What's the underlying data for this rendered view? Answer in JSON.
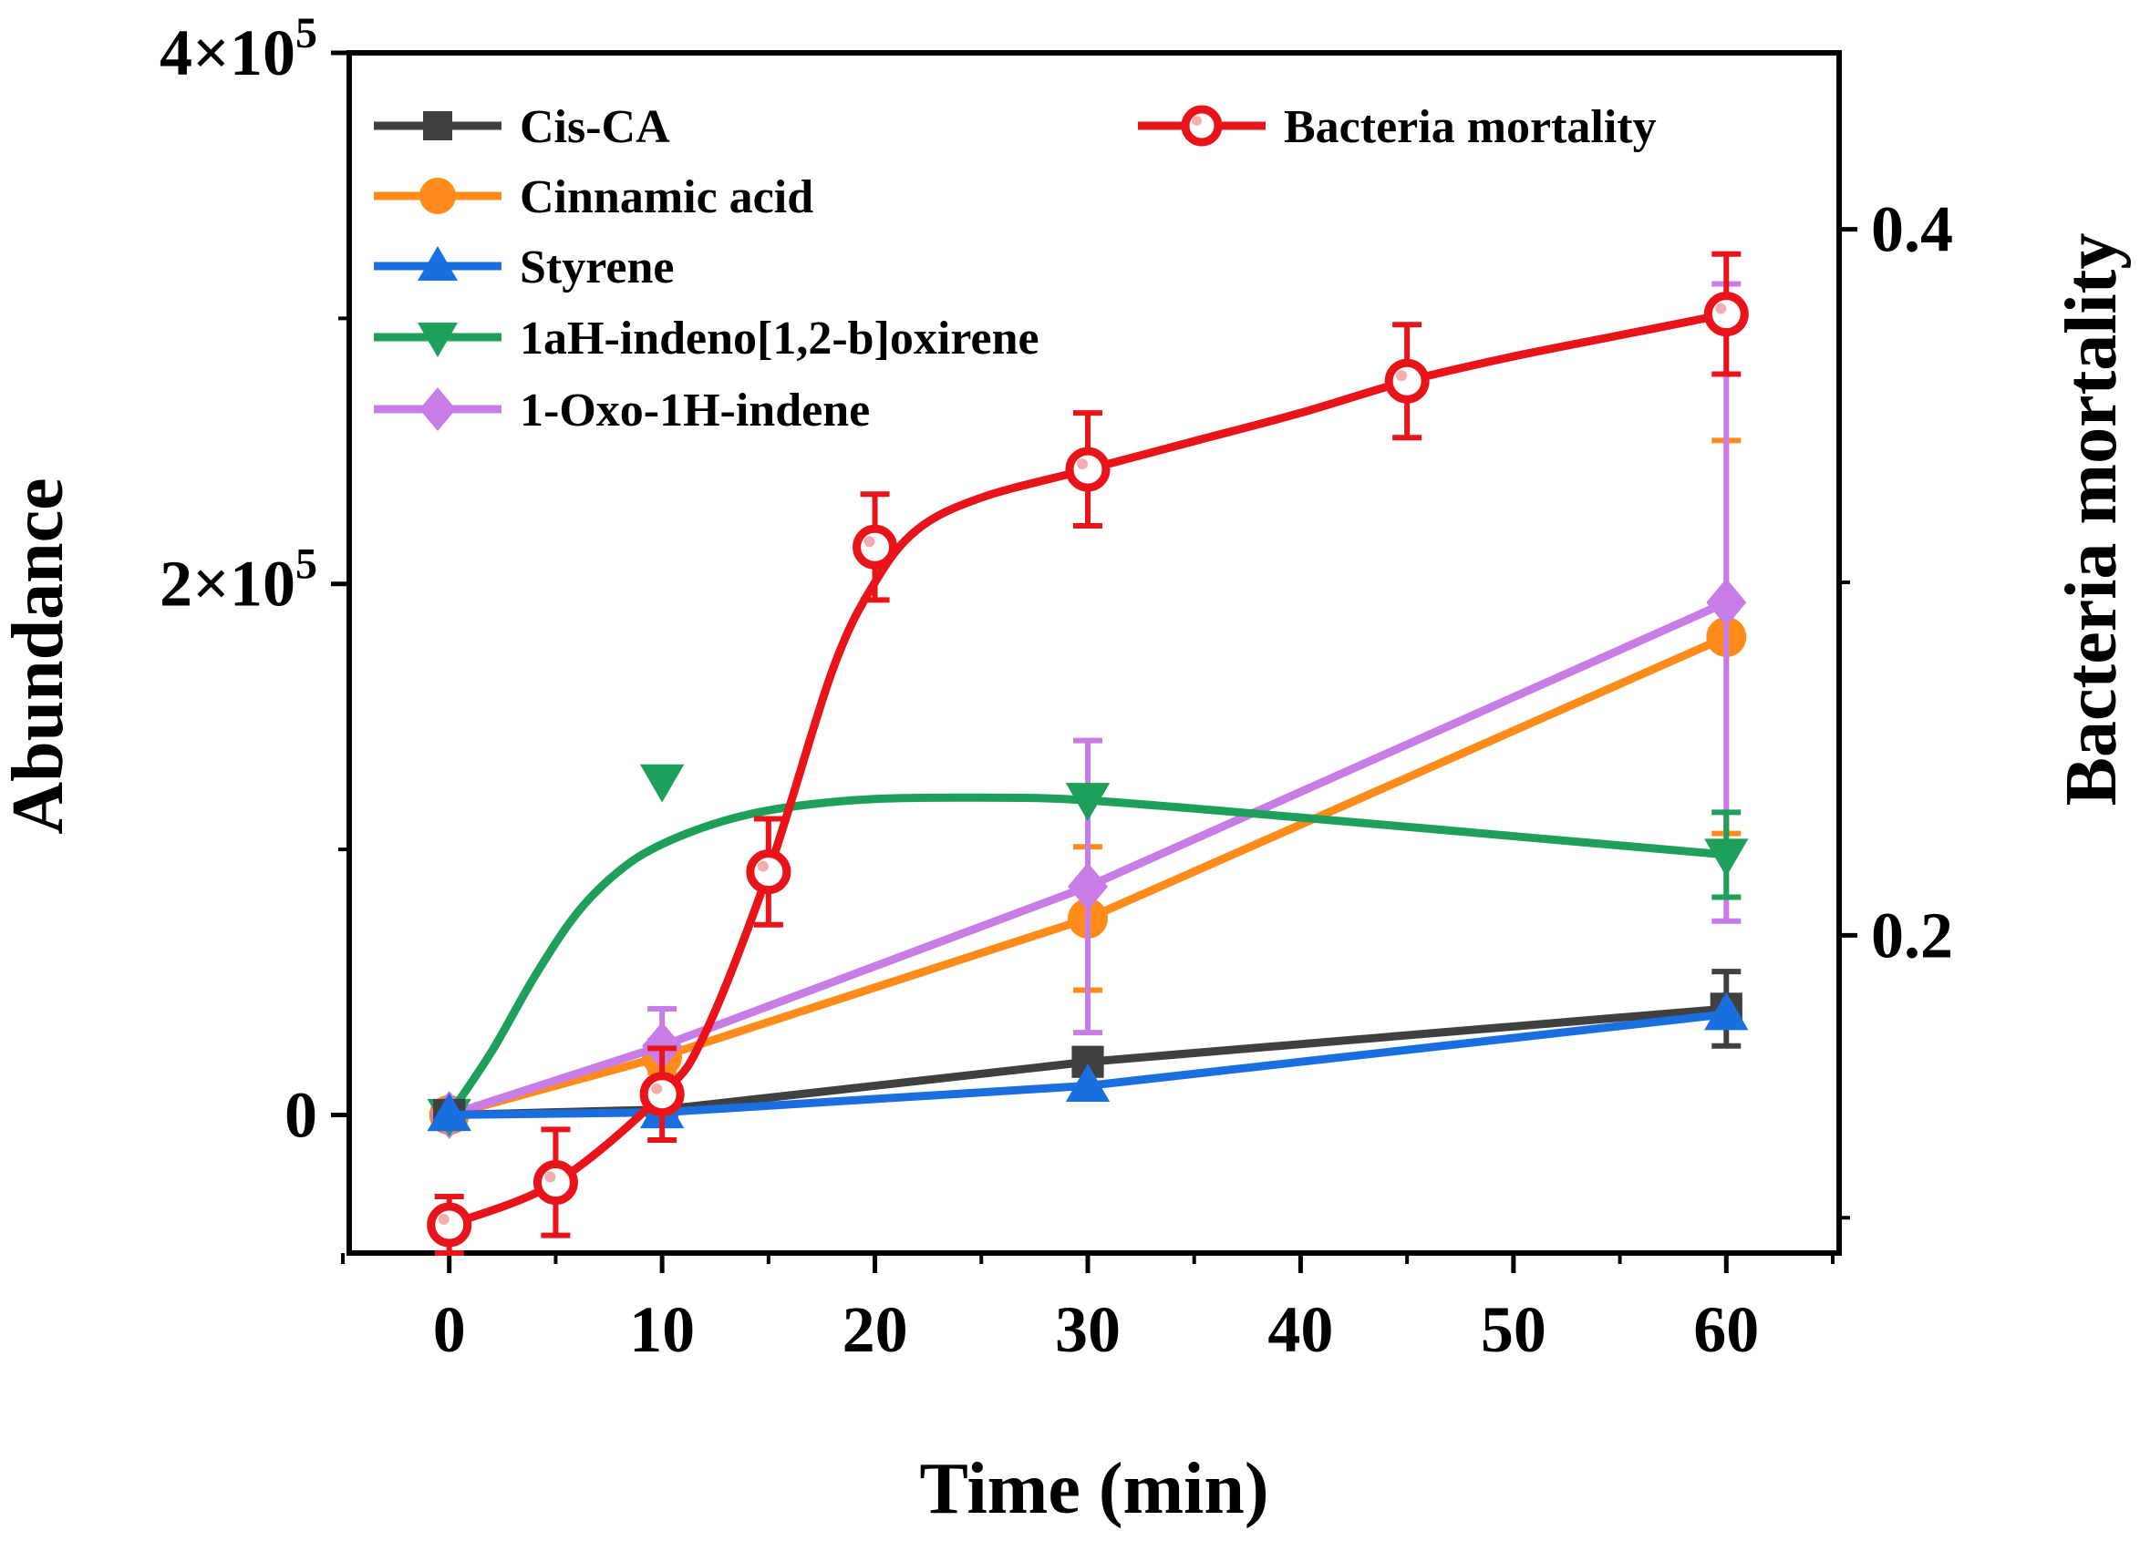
{
  "chart_data": {
    "type": "line",
    "xlabel": "Time (min)",
    "ylabel": "Abundance",
    "y2label": "Bacteria mortality",
    "xlim": [
      -4.7,
      65.3
    ],
    "ylim": [
      -52000,
      400000
    ],
    "y2lim": [
      0.11,
      0.45
    ],
    "x_ticks": [
      0,
      10,
      20,
      30,
      40,
      50,
      60
    ],
    "x_tick_labels": [
      "0",
      "10",
      "20",
      "30",
      "40",
      "50",
      "60"
    ],
    "y_ticks": [
      {
        "value": 0,
        "mantissa": "0",
        "exponent": ""
      },
      {
        "value": 200000,
        "mantissa": "2×10",
        "exponent": "5"
      },
      {
        "value": 400000,
        "mantissa": "4×10",
        "exponent": "5"
      }
    ],
    "y2_ticks": [
      {
        "value": 0.2,
        "label": "0.2"
      },
      {
        "value": 0.4,
        "label": "0.4"
      }
    ],
    "grid": false,
    "legend_position": "top",
    "series": [
      {
        "name": "Cis-CA",
        "axis": "left",
        "color": "#404040",
        "marker": "square",
        "points": [
          {
            "x": 0,
            "y": 0,
            "err": 0
          },
          {
            "x": 10,
            "y": 2000,
            "err": 0
          },
          {
            "x": 30,
            "y": 20000,
            "err": 0
          },
          {
            "x": 60,
            "y": 40000,
            "err": 14000
          }
        ]
      },
      {
        "name": "Cinnamic acid",
        "axis": "left",
        "color": "#ff8c1a",
        "marker": "circle",
        "points": [
          {
            "x": 0,
            "y": 0,
            "err": 0
          },
          {
            "x": 10,
            "y": 22000,
            "err": 6000
          },
          {
            "x": 30,
            "y": 74000,
            "err": 27000
          },
          {
            "x": 60,
            "y": 180000,
            "err": 74000
          }
        ]
      },
      {
        "name": "Styrene",
        "axis": "left",
        "color": "#1a6fe0",
        "marker": "triangle-up",
        "points": [
          {
            "x": 0,
            "y": 0,
            "err": 0
          },
          {
            "x": 10,
            "y": 1000,
            "err": 0
          },
          {
            "x": 30,
            "y": 11000,
            "err": 0
          },
          {
            "x": 60,
            "y": 38000,
            "err": 0
          }
        ]
      },
      {
        "name": "1aH-indeno[1,2-b]oxirene",
        "axis": "left",
        "color": "#1e9f5a",
        "marker": "triangle-down",
        "points": [
          {
            "x": 0,
            "y": 0,
            "err": 0
          },
          {
            "x": 10,
            "y": 126000,
            "err": 0
          },
          {
            "x": 30,
            "y": 119000,
            "err": 0
          },
          {
            "x": 60,
            "y": 98000,
            "err": 16000
          }
        ],
        "smooth_curve": [
          [
            0,
            0
          ],
          [
            2,
            24000
          ],
          [
            4,
            52000
          ],
          [
            6,
            76000
          ],
          [
            8,
            92000
          ],
          [
            10,
            102000
          ],
          [
            13,
            111000
          ],
          [
            16,
            116000
          ],
          [
            20,
            119000
          ],
          [
            25,
            119500
          ],
          [
            30,
            118500
          ],
          [
            40,
            112000
          ],
          [
            50,
            105000
          ],
          [
            60,
            98000
          ]
        ]
      },
      {
        "name": "1-Oxo-1H-indene",
        "axis": "left",
        "color": "#c87ce6",
        "marker": "diamond",
        "points": [
          {
            "x": 0,
            "y": 0,
            "err": 0
          },
          {
            "x": 10,
            "y": 26000,
            "err": 14000
          },
          {
            "x": 30,
            "y": 86000,
            "err": 55000
          },
          {
            "x": 60,
            "y": 193000,
            "err": 120000
          }
        ]
      },
      {
        "name": "Bacteria mortality",
        "axis": "right",
        "color": "#e8141a",
        "marker": "circle-open",
        "points": [
          {
            "x": 0,
            "y": 0.118,
            "err": 0.008
          },
          {
            "x": 5,
            "y": 0.13,
            "err": 0.015
          },
          {
            "x": 10,
            "y": 0.155,
            "err": 0.013
          },
          {
            "x": 15,
            "y": 0.218,
            "err": 0.015
          },
          {
            "x": 20,
            "y": 0.31,
            "err": 0.015
          },
          {
            "x": 30,
            "y": 0.332,
            "err": 0.016
          },
          {
            "x": 45,
            "y": 0.357,
            "err": 0.016
          },
          {
            "x": 60,
            "y": 0.376,
            "err": 0.017
          }
        ],
        "smooth_curve": [
          [
            0,
            0.118
          ],
          [
            5,
            0.13
          ],
          [
            10,
            0.155
          ],
          [
            12,
            0.172
          ],
          [
            15,
            0.218
          ],
          [
            18,
            0.275
          ],
          [
            20,
            0.3
          ],
          [
            22,
            0.315
          ],
          [
            25,
            0.324
          ],
          [
            30,
            0.332
          ],
          [
            35,
            0.34
          ],
          [
            40,
            0.348
          ],
          [
            45,
            0.357
          ],
          [
            50,
            0.364
          ],
          [
            55,
            0.37
          ],
          [
            60,
            0.376
          ]
        ]
      }
    ]
  }
}
